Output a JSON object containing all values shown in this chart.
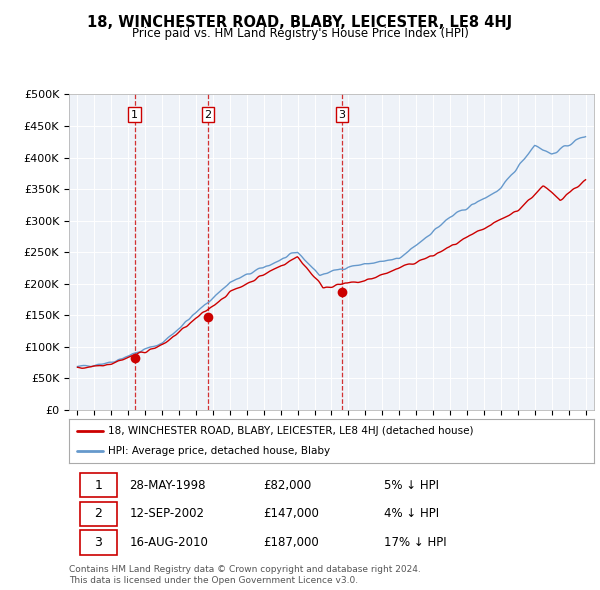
{
  "title": "18, WINCHESTER ROAD, BLABY, LEICESTER, LE8 4HJ",
  "subtitle": "Price paid vs. HM Land Registry's House Price Index (HPI)",
  "ylim": [
    0,
    500000
  ],
  "yticks": [
    0,
    50000,
    100000,
    150000,
    200000,
    250000,
    300000,
    350000,
    400000,
    450000,
    500000
  ],
  "ytick_labels": [
    "£0",
    "£50K",
    "£100K",
    "£150K",
    "£200K",
    "£250K",
    "£300K",
    "£350K",
    "£400K",
    "£450K",
    "£500K"
  ],
  "hpi_color": "#6699cc",
  "price_color": "#cc0000",
  "chart_bg_color": "#eef2f8",
  "sale_marker_color": "#cc0000",
  "sale_marker_size": 7,
  "grid_color": "#ffffff",
  "sales": [
    {
      "date_num": 1998.38,
      "price": 82000,
      "label": "1"
    },
    {
      "date_num": 2002.7,
      "price": 147000,
      "label": "2"
    },
    {
      "date_num": 2010.62,
      "price": 187000,
      "label": "3"
    }
  ],
  "sale_vline_color": "#cc0000",
  "legend_entries": [
    "18, WINCHESTER ROAD, BLABY, LEICESTER, LE8 4HJ (detached house)",
    "HPI: Average price, detached house, Blaby"
  ],
  "table_data": [
    [
      "1",
      "28-MAY-1998",
      "£82,000",
      "5% ↓ HPI"
    ],
    [
      "2",
      "12-SEP-2002",
      "£147,000",
      "4% ↓ HPI"
    ],
    [
      "3",
      "16-AUG-2010",
      "£187,000",
      "17% ↓ HPI"
    ]
  ],
  "footnote": "Contains HM Land Registry data © Crown copyright and database right 2024.\nThis data is licensed under the Open Government Licence v3.0.",
  "xlim_start": 1994.5,
  "xlim_end": 2025.5
}
